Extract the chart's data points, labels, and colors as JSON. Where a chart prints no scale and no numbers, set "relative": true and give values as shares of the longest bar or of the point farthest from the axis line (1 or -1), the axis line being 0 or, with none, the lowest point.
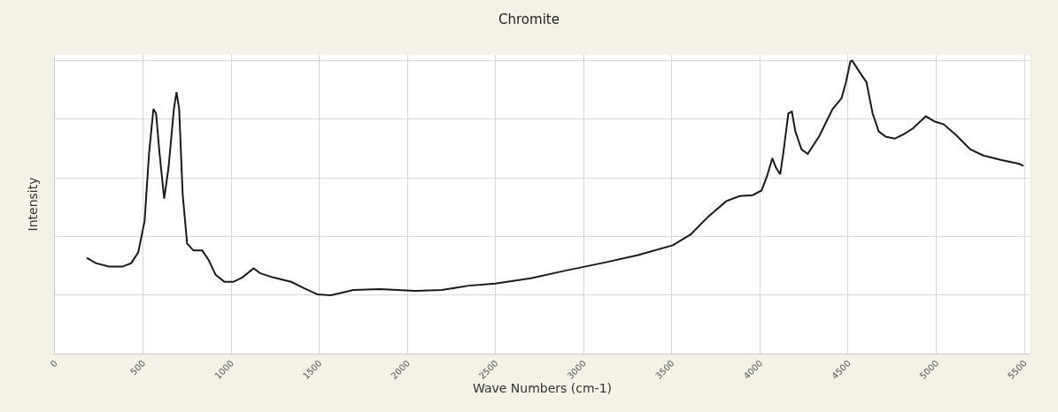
{
  "chart_data": {
    "type": "line",
    "title": "Chromite",
    "xlabel": "Wave Numbers (cm-1)",
    "ylabel": "Intensity",
    "relative": true,
    "grid": true,
    "marker": "none",
    "line_style": "solid",
    "xlim": [
      0,
      5530
    ],
    "xticks": [
      0,
      500,
      1000,
      1500,
      2000,
      2500,
      3000,
      3500,
      4000,
      4500,
      5000,
      5500
    ],
    "x": [
      181,
      232,
      307,
      383,
      433,
      473,
      509,
      534,
      559,
      574,
      594,
      620,
      645,
      675,
      690,
      705,
      725,
      750,
      786,
      836,
      871,
      912,
      962,
      1012,
      1063,
      1128,
      1163,
      1239,
      1340,
      1415,
      1491,
      1566,
      1692,
      1844,
      2045,
      2196,
      2347,
      2498,
      2700,
      2901,
      3103,
      3304,
      3506,
      3607,
      3707,
      3808,
      3884,
      3959,
      4009,
      4040,
      4070,
      4090,
      4115,
      4135,
      4161,
      4181,
      4201,
      4236,
      4271,
      4337,
      4412,
      4463,
      4488,
      4513,
      4523,
      4563,
      4604,
      4639,
      4674,
      4715,
      4765,
      4815,
      4866,
      4941,
      4992,
      5042,
      5118,
      5193,
      5269,
      5370,
      5470,
      5495
    ],
    "series": [
      {
        "color": "#1a1a1a",
        "values": [
          0.327,
          0.309,
          0.297,
          0.297,
          0.309,
          0.346,
          0.453,
          0.682,
          0.835,
          0.82,
          0.682,
          0.529,
          0.636,
          0.835,
          0.893,
          0.835,
          0.544,
          0.376,
          0.352,
          0.352,
          0.321,
          0.269,
          0.245,
          0.245,
          0.26,
          0.291,
          0.275,
          0.26,
          0.245,
          0.223,
          0.202,
          0.199,
          0.217,
          0.22,
          0.214,
          0.217,
          0.232,
          0.239,
          0.257,
          0.284,
          0.309,
          0.336,
          0.37,
          0.407,
          0.468,
          0.52,
          0.538,
          0.541,
          0.557,
          0.606,
          0.667,
          0.636,
          0.612,
          0.697,
          0.82,
          0.826,
          0.758,
          0.697,
          0.682,
          0.743,
          0.835,
          0.872,
          0.927,
          0.997,
          1.0,
          0.963,
          0.927,
          0.82,
          0.758,
          0.74,
          0.734,
          0.749,
          0.768,
          0.81,
          0.792,
          0.783,
          0.743,
          0.697,
          0.676,
          0.661,
          0.648,
          0.641
        ]
      }
    ]
  }
}
